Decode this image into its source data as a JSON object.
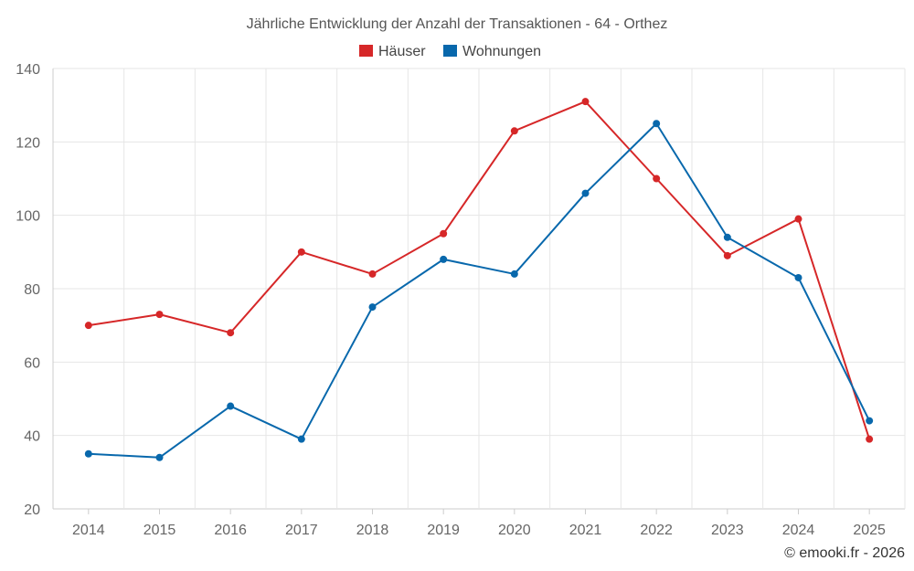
{
  "chart_data": {
    "type": "line",
    "title": "Jährliche Entwicklung der Anzahl der Transaktionen - 64 - Orthez",
    "categories": [
      "2014",
      "2015",
      "2016",
      "2017",
      "2018",
      "2019",
      "2020",
      "2021",
      "2022",
      "2023",
      "2024",
      "2025"
    ],
    "series": [
      {
        "name": "Häuser",
        "color": "#d62728",
        "values": [
          70,
          73,
          68,
          90,
          84,
          95,
          123,
          131,
          110,
          89,
          99,
          39
        ]
      },
      {
        "name": "Wohnungen",
        "color": "#0868ac",
        "values": [
          35,
          34,
          48,
          39,
          75,
          88,
          84,
          106,
          125,
          94,
          83,
          44
        ]
      }
    ],
    "ylim": [
      20,
      140
    ],
    "yticks": [
      20,
      40,
      60,
      80,
      100,
      120,
      140
    ],
    "xlabel": "",
    "ylabel": "",
    "grid": true,
    "legend_position": "top-center"
  },
  "credit": "© emooki.fr - 2026"
}
